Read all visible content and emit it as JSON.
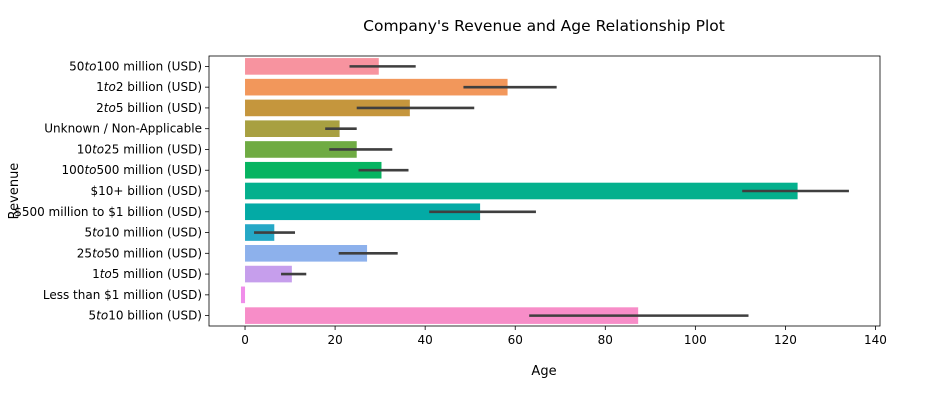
{
  "chart_data": {
    "type": "bar",
    "orientation": "horizontal",
    "title": "Company's Revenue and Age Relationship Plot",
    "xlabel": "Age",
    "ylabel": "Revenue",
    "xlim": [
      -8,
      141
    ],
    "xticks": [
      0,
      20,
      40,
      60,
      80,
      100,
      120,
      140
    ],
    "grid": false,
    "legend": "none",
    "categories": [
      "$50 to $100 million (USD)",
      "$1 to $2 billion (USD)",
      "$2 to $5 billion (USD)",
      "Unknown / Non-Applicable",
      "$10 to $25 million (USD)",
      "$100 to $500 million (USD)",
      "$10+ billion (USD)",
      "$500 million to $1 billion (USD)",
      "$5 to $10 million (USD)",
      "$25 to $50 million (USD)",
      "$1 to $5 million (USD)",
      "Less than $1 million (USD)",
      "$5 to $10 billion (USD)"
    ],
    "values": [
      29.7,
      58.3,
      36.6,
      21.0,
      24.8,
      30.3,
      122.7,
      52.2,
      6.5,
      27.1,
      10.4,
      -0.9,
      87.3
    ],
    "error_low": [
      23.2,
      48.5,
      24.8,
      17.8,
      18.7,
      25.2,
      110.4,
      40.9,
      2.0,
      20.8,
      8.0,
      -0.9,
      63.1
    ],
    "error_high": [
      37.9,
      69.2,
      50.9,
      24.8,
      32.7,
      36.3,
      134.1,
      64.6,
      11.1,
      33.9,
      13.6,
      -0.9,
      111.8
    ],
    "colors": [
      "#f7939f",
      "#f2975b",
      "#c5963d",
      "#a8a041",
      "#6fab43",
      "#06b461",
      "#04b08d",
      "#03aaa5",
      "#25a8c6",
      "#8db1ec",
      "#c69eec",
      "#f08dea",
      "#f78dc8"
    ],
    "error_color": "#3f3f3f"
  }
}
